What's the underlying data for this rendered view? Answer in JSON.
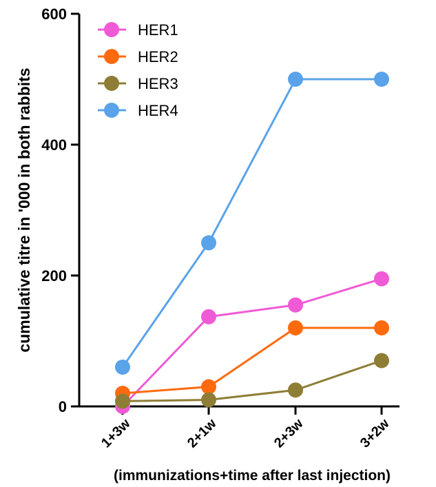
{
  "chart_data": {
    "type": "line",
    "categories": [
      "1+3w",
      "2+1w",
      "2+3w",
      "3+2w"
    ],
    "series": [
      {
        "name": "HER1",
        "color": "#f05ad6",
        "values": [
          0,
          137,
          155,
          195
        ]
      },
      {
        "name": "HER2",
        "color": "#ff6a0e",
        "values": [
          20,
          30,
          120,
          120
        ]
      },
      {
        "name": "HER3",
        "color": "#8e7d35",
        "values": [
          8,
          10,
          25,
          70
        ]
      },
      {
        "name": "HER4",
        "color": "#5aa3ea",
        "values": [
          60,
          250,
          500,
          500
        ]
      }
    ],
    "xlabel": "(immunizations+time after last injection)",
    "ylabel": "cumulative titre in '000 in both rabbits",
    "ylim": [
      0,
      600
    ],
    "yticks": [
      0,
      200,
      400,
      600
    ],
    "legend_position": "top-left",
    "grid": false
  }
}
